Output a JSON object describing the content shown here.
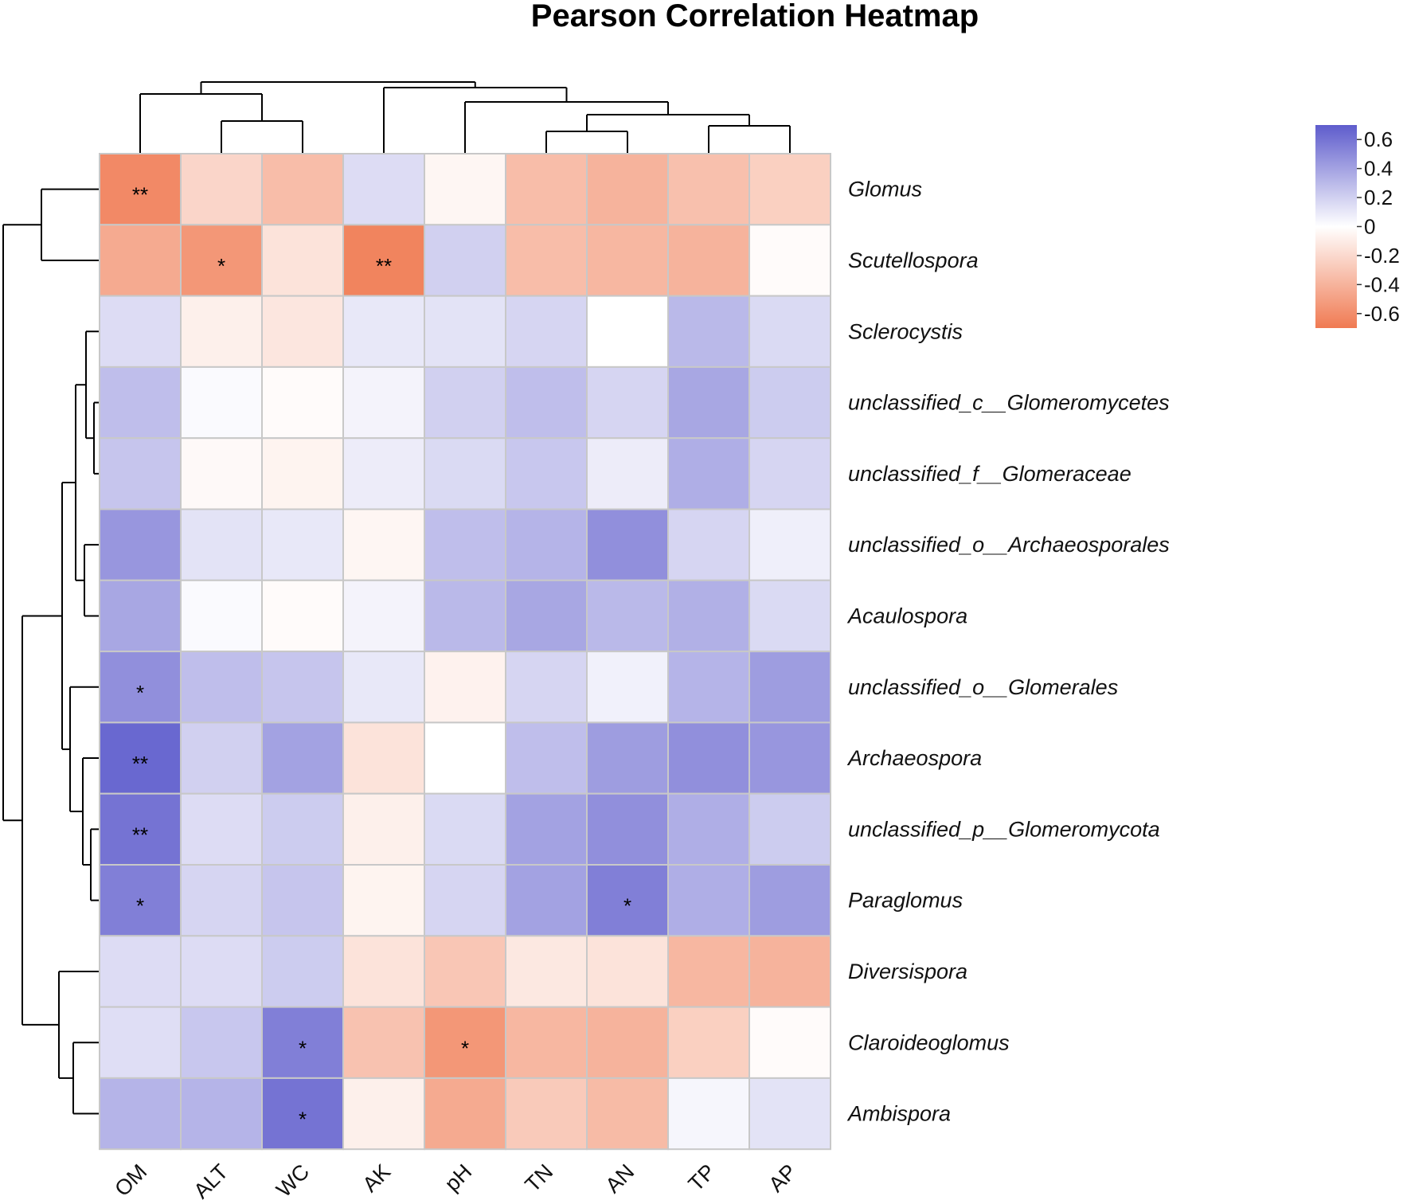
{
  "chart_data": {
    "type": "heatmap",
    "title": "Pearson Correlation Heatmap",
    "columns": [
      "OM",
      "ALT",
      "WC",
      "AK",
      "pH",
      "TN",
      "AN",
      "TP",
      "AP"
    ],
    "rows": [
      "Glomus",
      "Scutellospora",
      "Sclerocystis",
      "unclassified_c__Glomeromycetes",
      "unclassified_f__Glomeraceae",
      "unclassified_o__Archaeosporales",
      "Acaulospora",
      "unclassified_o__Glomerales",
      "Archaeospora",
      "unclassified_p__Glomeromycota",
      "Paraglomus",
      "Diversispora",
      "Claroideoglomus",
      "Ambispora"
    ],
    "values": [
      [
        -0.62,
        -0.22,
        -0.35,
        0.15,
        -0.05,
        -0.35,
        -0.4,
        -0.33,
        -0.25
      ],
      [
        -0.45,
        -0.55,
        -0.15,
        -0.65,
        0.2,
        -0.35,
        -0.38,
        -0.4,
        -0.02
      ],
      [
        0.15,
        -0.08,
        -0.13,
        0.1,
        0.12,
        0.18,
        0.0,
        0.3,
        0.16
      ],
      [
        0.28,
        0.02,
        -0.02,
        0.05,
        0.2,
        0.28,
        0.18,
        0.38,
        0.22
      ],
      [
        0.25,
        -0.03,
        -0.06,
        0.08,
        0.16,
        0.24,
        0.08,
        0.35,
        0.18
      ],
      [
        0.45,
        0.12,
        0.1,
        -0.05,
        0.28,
        0.32,
        0.48,
        0.18,
        0.07
      ],
      [
        0.38,
        0.02,
        -0.02,
        0.05,
        0.3,
        0.38,
        0.3,
        0.34,
        0.16
      ],
      [
        0.48,
        0.28,
        0.25,
        0.1,
        -0.07,
        0.18,
        0.06,
        0.32,
        0.42
      ],
      [
        0.65,
        0.2,
        0.4,
        -0.15,
        0.0,
        0.28,
        0.42,
        0.48,
        0.45
      ],
      [
        0.6,
        0.15,
        0.22,
        -0.08,
        0.16,
        0.4,
        0.48,
        0.35,
        0.22
      ],
      [
        0.55,
        0.18,
        0.25,
        -0.06,
        0.18,
        0.4,
        0.55,
        0.35,
        0.42
      ],
      [
        0.15,
        0.15,
        0.22,
        -0.15,
        -0.3,
        -0.12,
        -0.15,
        -0.38,
        -0.4
      ],
      [
        0.14,
        0.24,
        0.55,
        -0.32,
        -0.55,
        -0.38,
        -0.4,
        -0.25,
        -0.02
      ],
      [
        0.32,
        0.32,
        0.6,
        -0.08,
        -0.45,
        -0.28,
        -0.36,
        0.04,
        0.12
      ]
    ],
    "significance": [
      [
        "**",
        "",
        "",
        "",
        "",
        "",
        "",
        "",
        ""
      ],
      [
        "",
        "*",
        "",
        "**",
        "",
        "",
        "",
        "",
        ""
      ],
      [
        "",
        "",
        "",
        "",
        "",
        "",
        "",
        "",
        ""
      ],
      [
        "",
        "",
        "",
        "",
        "",
        "",
        "",
        "",
        ""
      ],
      [
        "",
        "",
        "",
        "",
        "",
        "",
        "",
        "",
        ""
      ],
      [
        "",
        "",
        "",
        "",
        "",
        "",
        "",
        "",
        ""
      ],
      [
        "",
        "",
        "",
        "",
        "",
        "",
        "",
        "",
        ""
      ],
      [
        "*",
        "",
        "",
        "",
        "",
        "",
        "",
        "",
        ""
      ],
      [
        "**",
        "",
        "",
        "",
        "",
        "",
        "",
        "",
        ""
      ],
      [
        "**",
        "",
        "",
        "",
        "",
        "",
        "",
        "",
        ""
      ],
      [
        "*",
        "",
        "",
        "",
        "",
        "",
        "*",
        "",
        ""
      ],
      [
        "",
        "",
        "",
        "",
        "",
        "",
        "",
        "",
        ""
      ],
      [
        "",
        "",
        "*",
        "",
        "*",
        "",
        "",
        "",
        ""
      ],
      [
        "",
        "",
        "*",
        "",
        "",
        "",
        "",
        "",
        ""
      ]
    ],
    "color_scale": {
      "min": -0.7,
      "max": 0.7,
      "neg_color": "#f07a52",
      "zero_color": "#ffffff",
      "pos_color": "#5e5ccc",
      "ticks": [
        "0.6",
        "0.4",
        "0.2",
        "0",
        "-0.2",
        "-0.4",
        "-0.6"
      ],
      "tick_values": [
        0.6,
        0.4,
        0.2,
        0,
        -0.2,
        -0.4,
        -0.6
      ]
    },
    "legend_position": "top-right",
    "grid_color": "#c8c8c8"
  }
}
